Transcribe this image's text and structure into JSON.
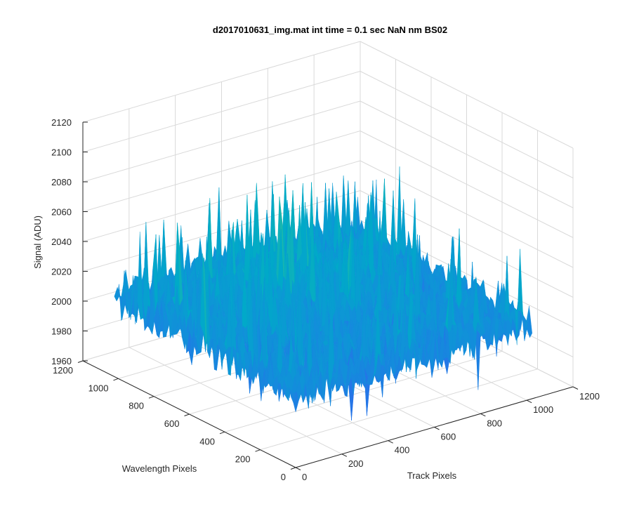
{
  "chart_data": {
    "type": "surface",
    "title": "d2017010631_img.mat int time = 0.1 sec  NaN nm BS02",
    "xlabel": "Track Pixels",
    "ylabel": "Wavelength Pixels",
    "zlabel": "Signal (ADU)",
    "xlim": [
      0,
      1200
    ],
    "ylim": [
      0,
      1200
    ],
    "zlim": [
      1960,
      2120
    ],
    "xticks": [
      "0",
      "200",
      "400",
      "600",
      "800",
      "1000",
      "1200"
    ],
    "yticks": [
      "0",
      "200",
      "400",
      "600",
      "800",
      "1000",
      "1200"
    ],
    "zticks": [
      "1960",
      "1980",
      "2000",
      "2020",
      "2040",
      "2060",
      "2080",
      "2100",
      "2120"
    ],
    "grid": true,
    "colormap": "parula",
    "data_extent": {
      "x": [
        1,
        1024
      ],
      "y": [
        1,
        1024
      ]
    },
    "surface_summary": {
      "mean": 2010,
      "noise_range": [
        1960,
        2115
      ],
      "peak_region": "top center, values up to about 2110"
    }
  }
}
